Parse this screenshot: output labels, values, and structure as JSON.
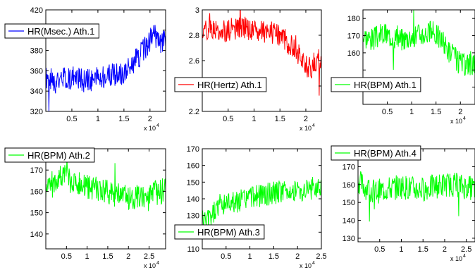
{
  "chart_data": [
    {
      "type": "line",
      "legend_location": "top-left",
      "xlim": [
        0,
        23000
      ],
      "ylim": [
        320,
        420
      ],
      "x_ticks": [
        5000,
        10000,
        15000,
        20000
      ],
      "x_tick_labels": [
        "0.5",
        "1",
        "1.5",
        "2"
      ],
      "y_ticks": [
        320,
        340,
        360,
        380,
        400,
        420
      ],
      "y_tick_labels": [
        "320",
        "340",
        "360",
        "380",
        "400",
        "420"
      ],
      "x_exponent_label": "x 10",
      "x_exponent_power": "4",
      "series": [
        {
          "name": "HR(Msec.) Ath.1",
          "color": "#0000ff",
          "x": [
            0,
            2000,
            4000,
            6000,
            8000,
            10000,
            12000,
            14000,
            15000,
            16000,
            17000,
            18000,
            19000,
            20000,
            21000,
            22000,
            23000
          ],
          "y": [
            352,
            349,
            354,
            352,
            350,
            353,
            355,
            356,
            358,
            364,
            370,
            374,
            382,
            390,
            395,
            386,
            390
          ],
          "noise": 12,
          "seed": 1
        }
      ]
    },
    {
      "type": "line",
      "legend_location": "bottom-left",
      "xlim": [
        0,
        23000
      ],
      "ylim": [
        2.2,
        3.0
      ],
      "x_ticks": [
        5000,
        10000,
        15000,
        20000
      ],
      "x_tick_labels": [
        "0.5",
        "1",
        "1.5",
        "2"
      ],
      "y_ticks": [
        2.2,
        2.4,
        2.6,
        2.8,
        3.0
      ],
      "y_tick_labels": [
        "2.2",
        "",
        "2.6",
        "2.8",
        "3"
      ],
      "x_exponent_label": "x 10",
      "x_exponent_power": "4",
      "series": [
        {
          "name": "HR(Hertz) Ath.1",
          "color": "#ff0000",
          "x": [
            0,
            2000,
            4000,
            6000,
            8000,
            10000,
            12000,
            14000,
            15000,
            16000,
            17000,
            18000,
            19000,
            20000,
            21000,
            22000,
            23000
          ],
          "y": [
            2.84,
            2.86,
            2.83,
            2.85,
            2.86,
            2.84,
            2.83,
            2.82,
            2.8,
            2.76,
            2.72,
            2.68,
            2.62,
            2.56,
            2.54,
            2.6,
            2.57
          ],
          "noise": 0.09,
          "seed": 2
        }
      ]
    },
    {
      "type": "line",
      "legend_location": "bottom-left",
      "xlim": [
        0,
        23000
      ],
      "ylim": [
        130,
        185
      ],
      "x_ticks": [
        5000,
        10000,
        15000,
        20000
      ],
      "x_tick_labels": [
        "0.5",
        "1",
        "1.5",
        "2"
      ],
      "y_ticks": [
        140,
        150,
        160,
        170,
        180
      ],
      "y_tick_labels": [
        "140",
        "",
        "160",
        "170",
        "180"
      ],
      "x_exponent_label": "x 10",
      "x_exponent_power": "4",
      "series": [
        {
          "name": "HR(BPM) Ath.1",
          "color": "#00ff00",
          "x": [
            0,
            2000,
            4000,
            6000,
            8000,
            10000,
            12000,
            14000,
            15000,
            16000,
            17000,
            18000,
            19000,
            20000,
            21000,
            22000,
            23000
          ],
          "y": [
            170,
            168,
            171,
            170,
            168,
            170,
            171,
            172,
            171,
            168,
            164,
            160,
            157,
            154,
            153,
            155,
            152
          ],
          "noise": 7,
          "seed": 3
        }
      ]
    },
    {
      "type": "line",
      "legend_location": "top-left",
      "xlim": [
        0,
        29000
      ],
      "ylim": [
        133,
        180
      ],
      "x_ticks": [
        5000,
        10000,
        15000,
        20000,
        25000
      ],
      "x_tick_labels": [
        "0.5",
        "1",
        "1.5",
        "2",
        "2.5"
      ],
      "y_ticks": [
        140,
        150,
        160,
        170
      ],
      "y_tick_labels": [
        "140",
        "150",
        "160",
        "170"
      ],
      "x_exponent_label": "x 10",
      "x_exponent_power": "4",
      "series": [
        {
          "name": "HR(BPM) Ath.2",
          "color": "#00ff00",
          "x": [
            0,
            2000,
            4000,
            6000,
            8000,
            10000,
            12000,
            14000,
            16000,
            18000,
            20000,
            22000,
            24000,
            26000,
            28000,
            29000
          ],
          "y": [
            162,
            165,
            167,
            165,
            163,
            162,
            161,
            160,
            159,
            158,
            157,
            157,
            158,
            159,
            160,
            161
          ],
          "noise": 6,
          "seed": 4
        }
      ]
    },
    {
      "type": "line",
      "legend_location": "bottom-left",
      "xlim": [
        0,
        25000
      ],
      "ylim": [
        110,
        170
      ],
      "x_ticks": [
        5000,
        10000,
        15000,
        20000,
        25000
      ],
      "x_tick_labels": [
        "0.5",
        "1",
        "1.5",
        "2",
        "2.5"
      ],
      "y_ticks": [
        110,
        120,
        130,
        140,
        150,
        160,
        170
      ],
      "y_tick_labels": [
        "110",
        "120",
        "130",
        "140",
        "150",
        "160",
        "170"
      ],
      "x_exponent_label": "x 10",
      "x_exponent_power": "4",
      "series": [
        {
          "name": "HR(BPM) Ath.3",
          "color": "#00ff00",
          "x": [
            0,
            1000,
            2000,
            3000,
            4000,
            6000,
            8000,
            10000,
            12000,
            14000,
            16000,
            18000,
            20000,
            22000,
            24000,
            25000
          ],
          "y": [
            128,
            126,
            130,
            134,
            137,
            138,
            139,
            141,
            142,
            143,
            144,
            144,
            145,
            146,
            147,
            148
          ],
          "noise": 7,
          "seed": 5
        }
      ]
    },
    {
      "type": "line",
      "legend_location": "top-left",
      "xlim": [
        0,
        27000
      ],
      "ylim": [
        128,
        180
      ],
      "x_ticks": [
        5000,
        10000,
        15000,
        20000,
        25000
      ],
      "x_tick_labels": [
        "0.5",
        "1",
        "1.5",
        "2",
        "2.5"
      ],
      "y_ticks": [
        130,
        140,
        150,
        160,
        170
      ],
      "y_tick_labels": [
        "130",
        "140",
        "150",
        "160",
        "170"
      ],
      "x_exponent_label": "x 10",
      "x_exponent_power": "4",
      "series": [
        {
          "name": "HR(BPM) Ath.4",
          "color": "#00ff00",
          "x": [
            0,
            2000,
            4000,
            6000,
            8000,
            10000,
            12000,
            14000,
            16000,
            18000,
            20000,
            22000,
            24000,
            26000,
            27000
          ],
          "y": [
            162,
            158,
            156,
            157,
            158,
            159,
            158,
            157,
            158,
            159,
            160,
            160,
            159,
            158,
            158
          ],
          "noise": 7,
          "seed": 6
        }
      ]
    }
  ]
}
